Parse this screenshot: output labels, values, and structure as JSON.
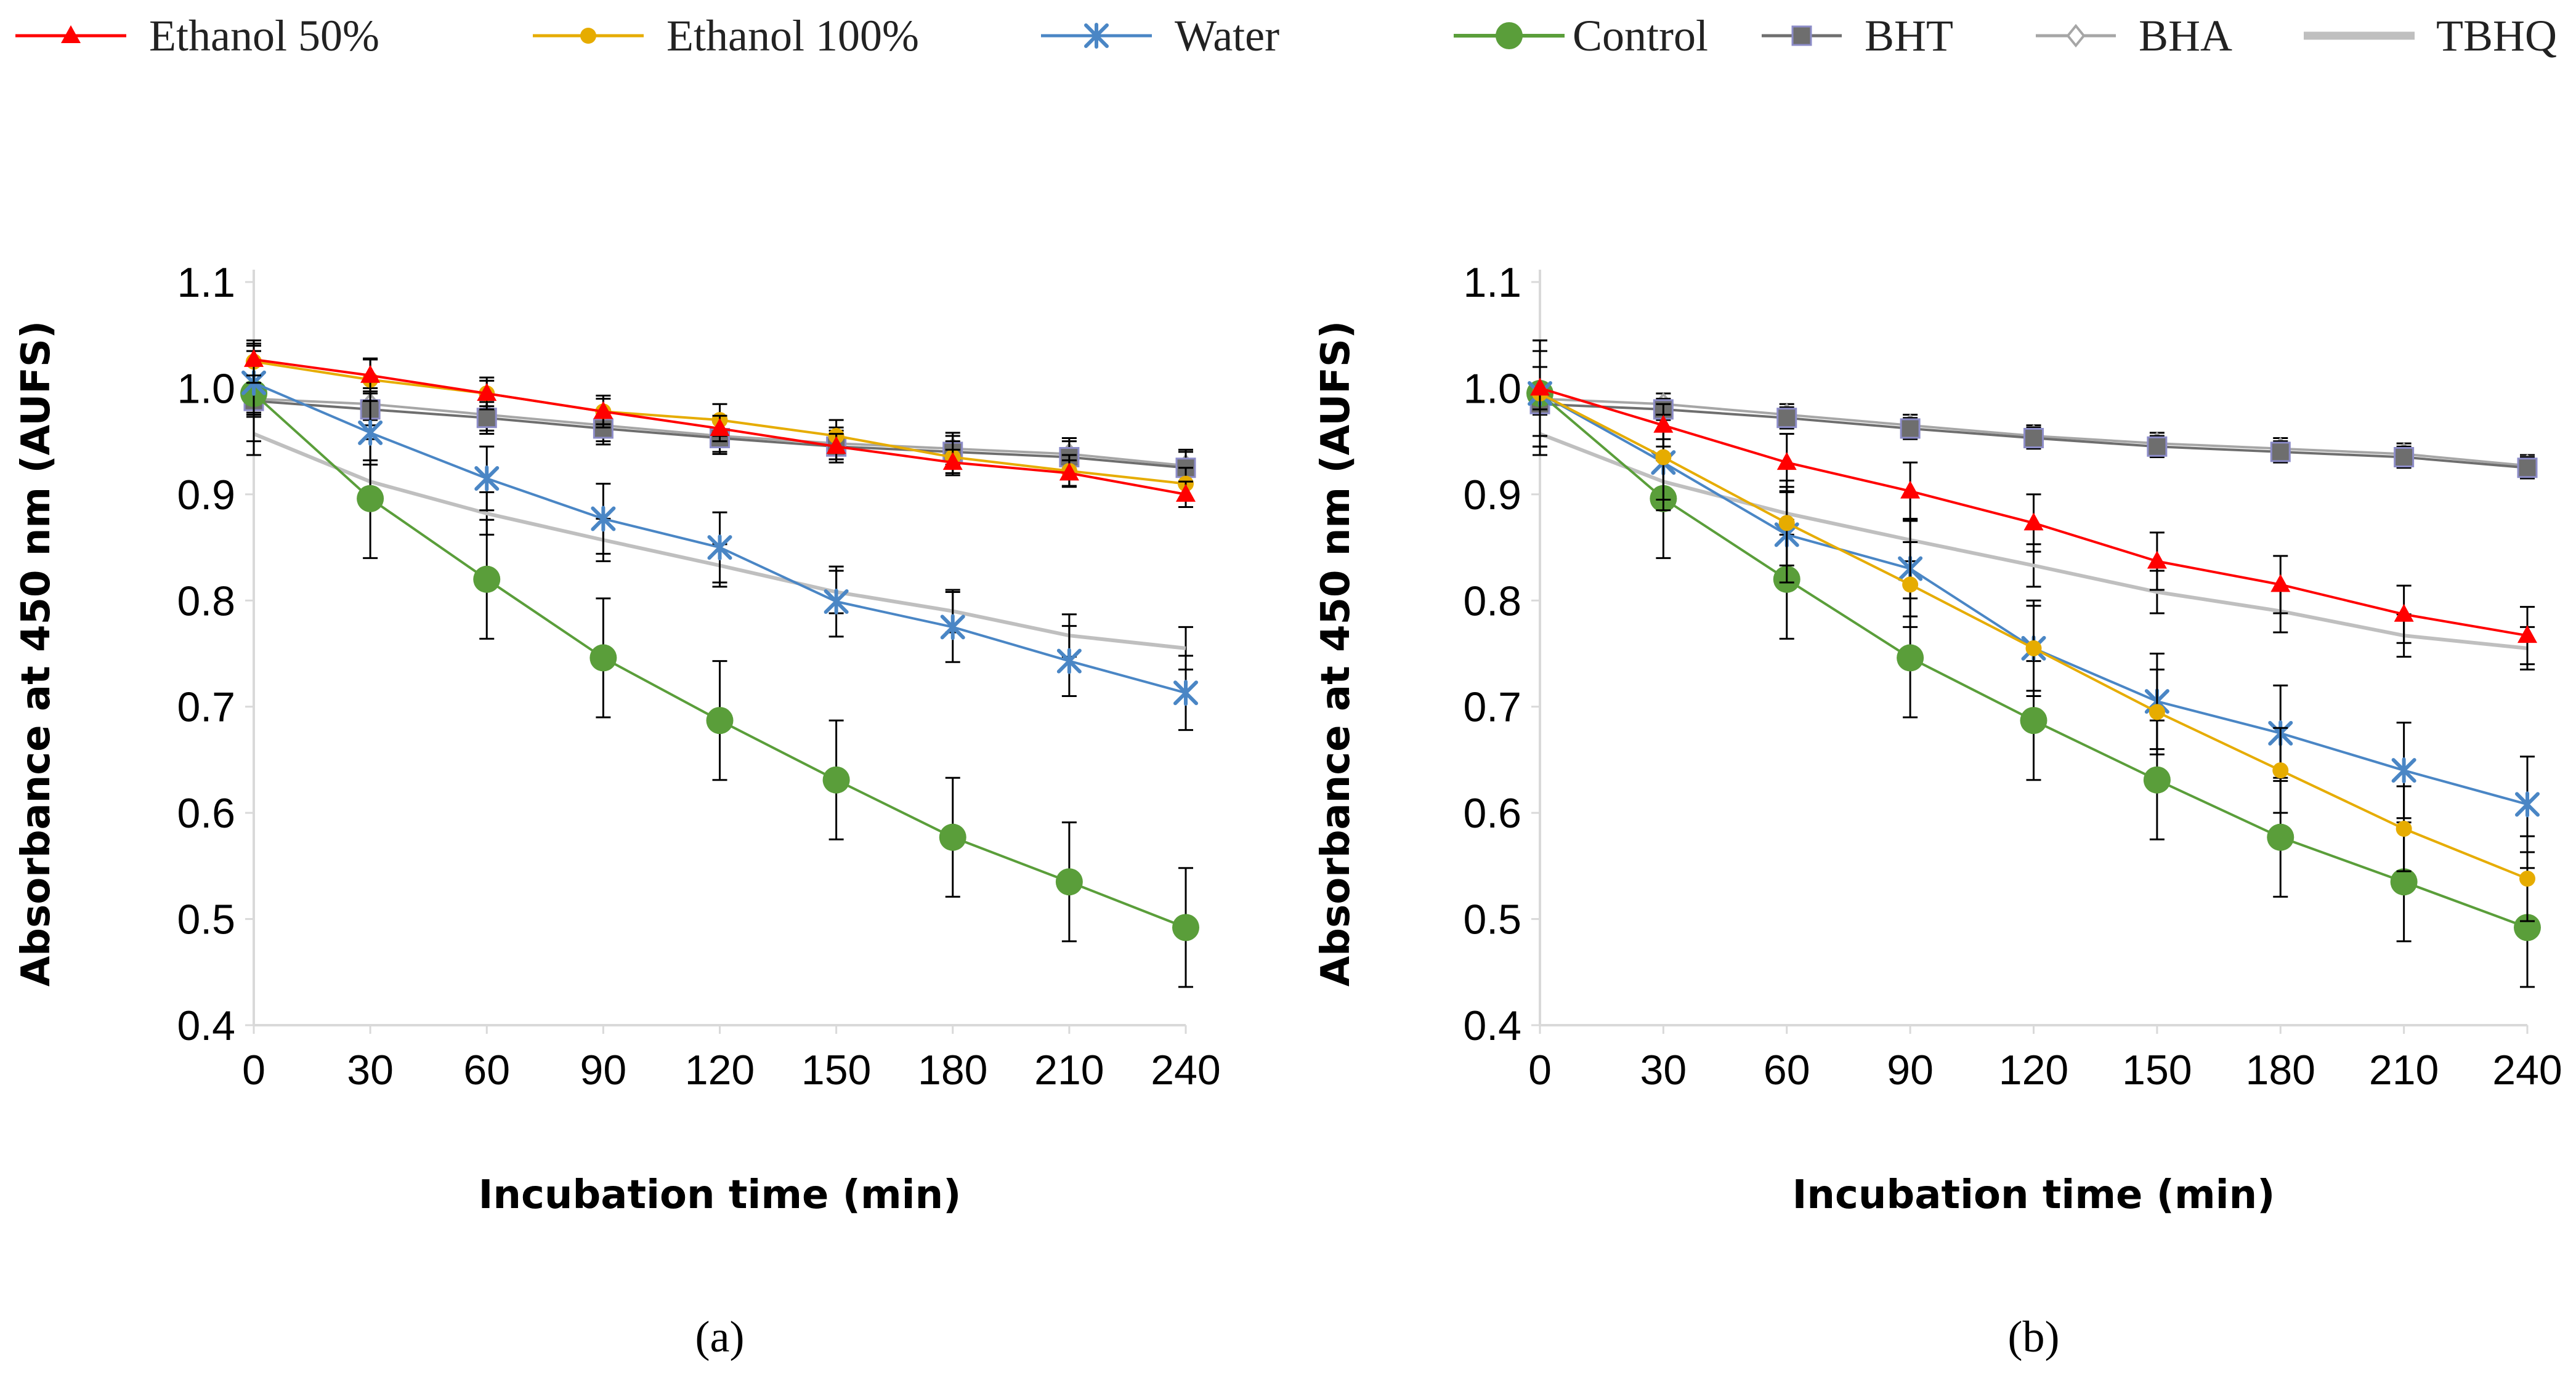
{
  "legend": [
    {
      "name": "Ethanol 50%",
      "color": "#ff0000",
      "marker": "triangle"
    },
    {
      "name": "Ethanol 100%",
      "color": "#e6ac00",
      "marker": "circle-small"
    },
    {
      "name": "Water",
      "color": "#4a86c5",
      "marker": "asterisk"
    },
    {
      "name": "Control",
      "color": "#5a9e3a",
      "marker": "circle-large"
    },
    {
      "name": "BHT",
      "color": "#6e6e6e",
      "marker": "square"
    },
    {
      "name": "BHA",
      "color": "#a6a6a6",
      "marker": "diamond-open"
    },
    {
      "name": "TBHQ",
      "color": "#bfbfbf",
      "marker": "line"
    }
  ],
  "chart_data": [
    {
      "type": "line",
      "panel_label": "(a)",
      "xlabel": "Incubation time (min)",
      "ylabel": "Absorbance at 450 nm (AUFS)",
      "x": [
        0,
        30,
        60,
        90,
        120,
        150,
        180,
        210,
        240
      ],
      "x_tick_labels": [
        "0",
        "30",
        "60",
        "90",
        "120",
        "150",
        "180",
        "210",
        "240"
      ],
      "ylim": [
        0.4,
        1.1
      ],
      "y_tick_labels": [
        "0.4",
        "0.5",
        "0.6",
        "0.7",
        "0.8",
        "0.9",
        "1.0",
        "1.1"
      ],
      "series": [
        {
          "name": "TBHQ",
          "values": [
            0.957,
            0.912,
            0.882,
            0.857,
            0.833,
            0.808,
            0.79,
            0.767,
            0.755
          ],
          "errors": [
            0.02,
            0.02,
            0.02,
            0.02,
            0.02,
            0.02,
            0.02,
            0.02,
            0.02
          ]
        },
        {
          "name": "BHA",
          "values": [
            0.99,
            0.985,
            0.975,
            0.965,
            0.955,
            0.948,
            0.943,
            0.938,
            0.927
          ],
          "errors": [
            0.015,
            0.015,
            0.015,
            0.015,
            0.015,
            0.015,
            0.015,
            0.015,
            0.015
          ]
        },
        {
          "name": "BHT",
          "values": [
            0.988,
            0.98,
            0.972,
            0.962,
            0.953,
            0.945,
            0.94,
            0.935,
            0.925
          ],
          "errors": [
            0.015,
            0.015,
            0.015,
            0.015,
            0.015,
            0.015,
            0.015,
            0.015,
            0.015
          ]
        },
        {
          "name": "Control",
          "values": [
            0.995,
            0.896,
            0.82,
            0.746,
            0.687,
            0.631,
            0.577,
            0.535,
            0.492
          ],
          "errors": [
            0.045,
            0.056,
            0.056,
            0.056,
            0.056,
            0.056,
            0.056,
            0.056,
            0.056
          ]
        },
        {
          "name": "Water",
          "values": [
            1.005,
            0.958,
            0.915,
            0.877,
            0.85,
            0.799,
            0.775,
            0.743,
            0.713
          ],
          "errors": [
            0.03,
            0.03,
            0.03,
            0.033,
            0.033,
            0.033,
            0.033,
            0.033,
            0.035
          ]
        },
        {
          "name": "Ethanol 100%",
          "values": [
            1.025,
            1.008,
            0.995,
            0.978,
            0.97,
            0.955,
            0.935,
            0.922,
            0.91
          ],
          "errors": [
            0.02,
            0.02,
            0.015,
            0.015,
            0.015,
            0.015,
            0.015,
            0.015,
            0.015
          ]
        },
        {
          "name": "Ethanol 50%",
          "values": [
            1.027,
            1.012,
            0.995,
            0.978,
            0.962,
            0.945,
            0.93,
            0.92,
            0.9
          ],
          "errors": [
            0.015,
            0.015,
            0.012,
            0.012,
            0.012,
            0.012,
            0.012,
            0.012,
            0.012
          ]
        }
      ]
    },
    {
      "type": "line",
      "panel_label": "(b)",
      "xlabel": "Incubation time (min)",
      "ylabel": "Absorbance at 450 nm (AUFS)",
      "x": [
        0,
        30,
        60,
        90,
        120,
        150,
        180,
        210,
        240
      ],
      "x_tick_labels": [
        "0",
        "30",
        "60",
        "90",
        "120",
        "150",
        "180",
        "210",
        "240"
      ],
      "ylim": [
        0.4,
        1.1
      ],
      "y_tick_labels": [
        "0.4",
        "0.5",
        "0.6",
        "0.7",
        "0.8",
        "0.9",
        "1.0",
        "1.1"
      ],
      "series": [
        {
          "name": "TBHQ",
          "values": [
            0.957,
            0.912,
            0.882,
            0.857,
            0.833,
            0.808,
            0.79,
            0.767,
            0.755
          ],
          "errors": [
            0.02,
            0.02,
            0.02,
            0.02,
            0.02,
            0.02,
            0.02,
            0.02,
            0.02
          ]
        },
        {
          "name": "BHA",
          "values": [
            0.99,
            0.985,
            0.975,
            0.965,
            0.955,
            0.948,
            0.943,
            0.938,
            0.927
          ],
          "errors": [
            0.01,
            0.01,
            0.01,
            0.01,
            0.01,
            0.01,
            0.01,
            0.01,
            0.01
          ]
        },
        {
          "name": "BHT",
          "values": [
            0.985,
            0.98,
            0.972,
            0.962,
            0.953,
            0.945,
            0.94,
            0.935,
            0.925
          ],
          "errors": [
            0.01,
            0.01,
            0.01,
            0.01,
            0.01,
            0.01,
            0.01,
            0.01,
            0.01
          ]
        },
        {
          "name": "Control",
          "values": [
            0.995,
            0.896,
            0.82,
            0.746,
            0.687,
            0.631,
            0.577,
            0.535,
            0.492
          ],
          "errors": [
            0.05,
            0.056,
            0.056,
            0.056,
            0.056,
            0.056,
            0.056,
            0.056,
            0.056
          ]
        },
        {
          "name": "Water",
          "values": [
            0.995,
            0.93,
            0.862,
            0.83,
            0.755,
            0.705,
            0.675,
            0.64,
            0.608
          ],
          "errors": [
            0.05,
            0.045,
            0.045,
            0.045,
            0.045,
            0.045,
            0.045,
            0.045,
            0.045
          ]
        },
        {
          "name": "Ethanol 100%",
          "values": [
            0.995,
            0.935,
            0.873,
            0.815,
            0.755,
            0.695,
            0.64,
            0.585,
            0.538
          ],
          "errors": [
            0.04,
            0.04,
            0.04,
            0.04,
            0.04,
            0.04,
            0.04,
            0.04,
            0.04
          ]
        },
        {
          "name": "Ethanol 50%",
          "values": [
            1.0,
            0.965,
            0.93,
            0.903,
            0.873,
            0.837,
            0.815,
            0.787,
            0.767
          ],
          "errors": [
            0.02,
            0.02,
            0.027,
            0.027,
            0.027,
            0.027,
            0.027,
            0.027,
            0.027
          ]
        }
      ]
    }
  ]
}
